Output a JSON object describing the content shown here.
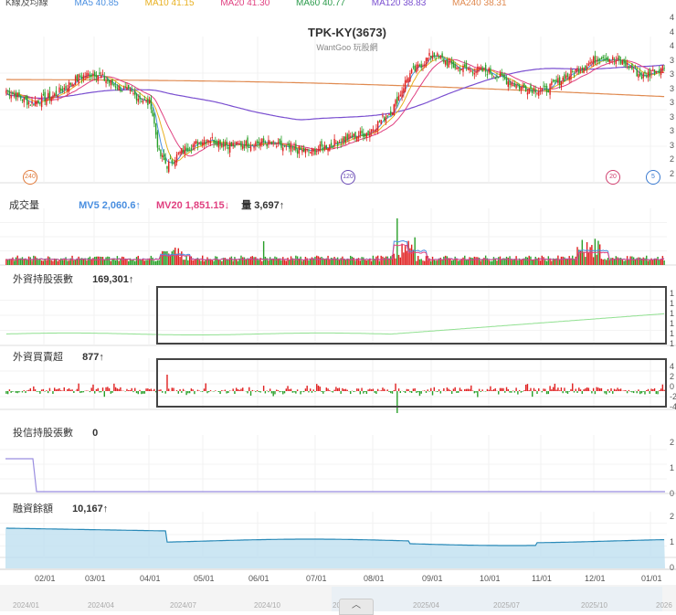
{
  "chart_data": {
    "type": "candlestick-with-indicators",
    "title": "TPK-KY(3673)",
    "subtitle": "WantGoo 玩股網",
    "top_legend": [
      "K線及均線",
      "MA5 40.85",
      "MA10 41.15",
      "MA20 41.30",
      "MA60 40.77",
      "MA120 38.83",
      "MA240 38.31"
    ],
    "price_panel_right_labels": [
      "4",
      "4",
      "4",
      "3",
      "3",
      "3",
      "3",
      "3",
      "3",
      "3",
      "2",
      "2"
    ],
    "markers": [
      {
        "label": "240",
        "color": "#e07a3a"
      },
      {
        "label": "120",
        "color": "#6a4bb5"
      },
      {
        "label": "20",
        "color": "#d04070"
      },
      {
        "label": "5",
        "color": "#3a7ad0"
      }
    ],
    "volume_panel": {
      "title": "成交量",
      "mv5_label": "MV5 2,060.6↑",
      "mv20_label": "MV20 1,851.15↓",
      "vol_label": "量 3,697↑"
    },
    "foreign_holding_panel": {
      "title": "外資持股張數",
      "value": "169,301↑",
      "right_labels": [
        "1",
        "1",
        "1",
        "1",
        "1",
        "1"
      ]
    },
    "foreign_net_panel": {
      "title": "外資買賣超",
      "value": "877↑",
      "right_labels": [
        "4",
        "2",
        "0",
        "-2",
        "-4"
      ]
    },
    "trust_holding_panel": {
      "title": "投信持股張數",
      "value": "0",
      "right_labels": [
        "2",
        "1",
        "0"
      ]
    },
    "margin_panel": {
      "title": "融資餘額",
      "value": "10,167↑",
      "right_labels": [
        "2",
        "1",
        "0"
      ]
    },
    "x_ticks": [
      "02/01",
      "03/01",
      "04/01",
      "05/01",
      "06/01",
      "07/01",
      "08/01",
      "09/01",
      "10/01",
      "11/01",
      "12/01",
      "01/01"
    ],
    "navigator_ticks": [
      "2024/01",
      "2024/04",
      "2024/07",
      "2024/10",
      "2025/01",
      "2025/04",
      "2025/07",
      "2025/10",
      "2026"
    ],
    "colors": {
      "up": "#e02020",
      "down": "#2aa02a",
      "ma5": "#4a8fe0",
      "ma10": "#e8b020",
      "ma20": "#e04080",
      "ma60": "#2a9a4a",
      "ma120": "#7a4fd0",
      "ma240": "#e08a50",
      "foreign_holding": "#90e090",
      "trust": "#9a8ee0",
      "margin_fill": "#bfe0f0",
      "margin_line": "#2a8ab8"
    },
    "price_path_keypoints": [
      [
        0,
        37.5
      ],
      [
        15,
        36.2
      ],
      [
        30,
        37.0
      ],
      [
        45,
        38.8
      ],
      [
        55,
        39.3
      ],
      [
        65,
        38.2
      ],
      [
        80,
        37.0
      ],
      [
        90,
        36.0
      ],
      [
        95,
        31.0
      ],
      [
        100,
        29.8
      ],
      [
        110,
        31.4
      ],
      [
        125,
        32.6
      ],
      [
        140,
        31.8
      ],
      [
        160,
        32.2
      ],
      [
        175,
        31.5
      ],
      [
        190,
        31.2
      ],
      [
        210,
        32.5
      ],
      [
        225,
        33.2
      ],
      [
        240,
        35.5
      ],
      [
        250,
        39.0
      ],
      [
        265,
        41.2
      ],
      [
        280,
        39.8
      ],
      [
        300,
        39.4
      ],
      [
        320,
        37.8
      ],
      [
        335,
        37.5
      ],
      [
        345,
        38.6
      ],
      [
        355,
        39.6
      ],
      [
        370,
        41.0
      ],
      [
        385,
        40.2
      ],
      [
        395,
        38.9
      ],
      [
        410,
        40.0
      ]
    ],
    "n_bars": 410
  }
}
